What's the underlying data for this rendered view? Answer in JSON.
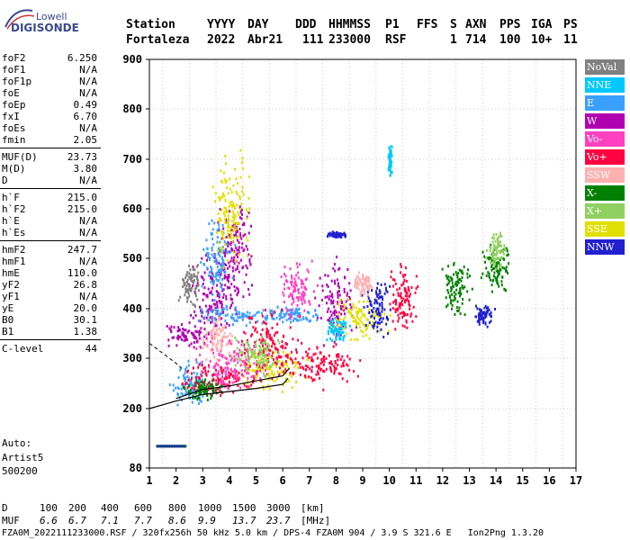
{
  "logo": {
    "brand_top": "Lowell",
    "brand_main": "DIGISONDE"
  },
  "header": {
    "labels": [
      "Station",
      "YYYY",
      "DAY",
      "DDD",
      "HHMMSS",
      "P1",
      "FFS",
      "S",
      "AXN",
      "PPS",
      "IGA",
      "PS"
    ],
    "values": [
      "Fortaleza",
      "2022",
      "Abr21",
      "111",
      "233000",
      "RSF",
      "",
      "1",
      "714",
      "100",
      "10+",
      "11"
    ]
  },
  "params": [
    {
      "group": [
        {
          "name": "foF2",
          "value": "6.250"
        },
        {
          "name": "foF1",
          "value": "N/A"
        },
        {
          "name": "foF1p",
          "value": "N/A"
        },
        {
          "name": "foE",
          "value": "N/A"
        },
        {
          "name": "foEp",
          "value": "0.49"
        },
        {
          "name": "fxI",
          "value": "6.70"
        },
        {
          "name": "foEs",
          "value": "N/A"
        },
        {
          "name": "fmin",
          "value": "2.05"
        }
      ]
    },
    {
      "group": [
        {
          "name": "MUF(D)",
          "value": "23.73"
        },
        {
          "name": "M(D)",
          "value": "3.80"
        },
        {
          "name": "D",
          "value": "N/A"
        }
      ]
    },
    {
      "group": [
        {
          "name": "h`F",
          "value": "215.0"
        },
        {
          "name": "h`F2",
          "value": "215.0"
        },
        {
          "name": "h`E",
          "value": "N/A"
        },
        {
          "name": "h`Es",
          "value": "N/A"
        }
      ]
    },
    {
      "group": [
        {
          "name": "hmF2",
          "value": "247.7"
        },
        {
          "name": "hmF1",
          "value": "N/A"
        },
        {
          "name": "hmE",
          "value": "110.0"
        },
        {
          "name": "yF2",
          "value": "26.8"
        },
        {
          "name": "yF1",
          "value": "N/A"
        },
        {
          "name": "yE",
          "value": "20.0"
        },
        {
          "name": "B0",
          "value": "30.1"
        },
        {
          "name": "B1",
          "value": "1.38"
        }
      ]
    },
    {
      "group": [
        {
          "name": "C-level",
          "value": "44"
        }
      ]
    }
  ],
  "auto": {
    "line1": "Auto:",
    "line2": "Artist5",
    "line3": "500200"
  },
  "legend": [
    {
      "label": "NoVal",
      "color": "#808080"
    },
    {
      "label": "NNE",
      "color": "#00c8ff"
    },
    {
      "label": "E",
      "color": "#3aa0ff"
    },
    {
      "label": "W",
      "color": "#b000b0"
    },
    {
      "label": "Vo-",
      "color": "#ff40c0"
    },
    {
      "label": "Vo+",
      "color": "#ff0040"
    },
    {
      "label": "SSW",
      "color": "#ffb0b0"
    },
    {
      "label": "X-",
      "color": "#008000"
    },
    {
      "label": "X+",
      "color": "#90d060"
    },
    {
      "label": "SSE",
      "color": "#e0e000"
    },
    {
      "label": "NNW",
      "color": "#2020d0"
    }
  ],
  "chart_data": {
    "type": "scatter",
    "xlim": [
      1,
      17
    ],
    "ylim": [
      80,
      900
    ],
    "x_ticks": [
      "1",
      "2",
      "3",
      "4",
      "5",
      "6",
      "7",
      "8",
      "9",
      "10",
      "11",
      "12",
      "13",
      "14",
      "15",
      "16",
      "17"
    ],
    "y_ticks": [
      "80",
      "200",
      "300",
      "400",
      "500",
      "600",
      "700",
      "800",
      "900"
    ],
    "y_tick_values": [
      80,
      200,
      300,
      400,
      500,
      600,
      700,
      800,
      900
    ],
    "grid": true,
    "legend_position": "right",
    "series": [
      {
        "name": "W",
        "color": "#b000b0",
        "clusters": [
          [
            3.5,
            430,
            0.7,
            60
          ],
          [
            2.5,
            350,
            0.6,
            20
          ],
          [
            4.2,
            520,
            0.5,
            80
          ],
          [
            8.0,
            410,
            0.5,
            60
          ]
        ]
      },
      {
        "name": "E",
        "color": "#3aa0ff",
        "clusters": [
          [
            3.5,
            500,
            0.4,
            60
          ],
          [
            4.5,
            390,
            1.2,
            15
          ],
          [
            2.5,
            250,
            0.6,
            30
          ],
          [
            6.5,
            390,
            0.7,
            12
          ]
        ]
      },
      {
        "name": "SSE",
        "color": "#e0e000",
        "clusters": [
          [
            4.0,
            600,
            0.5,
            80
          ],
          [
            8.8,
            380,
            0.8,
            30
          ],
          [
            5.5,
            280,
            1.0,
            30
          ]
        ]
      },
      {
        "name": "Vo+",
        "color": "#ff0040",
        "clusters": [
          [
            3.5,
            260,
            1.2,
            25
          ],
          [
            5.5,
            330,
            0.8,
            50
          ],
          [
            7.5,
            290,
            1.0,
            30
          ],
          [
            10.5,
            420,
            0.4,
            50
          ]
        ]
      },
      {
        "name": "Vo-",
        "color": "#ff40c0",
        "clusters": [
          [
            4.0,
            290,
            1.0,
            40
          ],
          [
            6.5,
            440,
            0.5,
            40
          ]
        ]
      },
      {
        "name": "X-",
        "color": "#008000",
        "clusters": [
          [
            3.0,
            240,
            0.6,
            15
          ],
          [
            12.5,
            450,
            0.4,
            40
          ],
          [
            14.0,
            480,
            0.4,
            40
          ]
        ]
      },
      {
        "name": "X+",
        "color": "#90d060",
        "clusters": [
          [
            5.0,
            310,
            0.6,
            30
          ],
          [
            14.0,
            520,
            0.3,
            25
          ]
        ]
      },
      {
        "name": "NNE",
        "color": "#00c8ff",
        "clusters": [
          [
            10.0,
            700,
            0.05,
            20
          ],
          [
            8.0,
            360,
            0.3,
            20
          ]
        ]
      },
      {
        "name": "NNW",
        "color": "#2020d0",
        "clusters": [
          [
            8.0,
            550,
            0.3,
            5
          ],
          [
            9.5,
            400,
            0.4,
            40
          ],
          [
            13.5,
            390,
            0.3,
            15
          ]
        ]
      },
      {
        "name": "SSW",
        "color": "#ffb0b0",
        "clusters": [
          [
            3.5,
            340,
            0.4,
            30
          ],
          [
            9.0,
            450,
            0.3,
            20
          ]
        ]
      },
      {
        "name": "NoVal",
        "color": "#808080",
        "clusters": [
          [
            2.5,
            450,
            0.3,
            30
          ]
        ]
      }
    ],
    "dashed_curve": [
      [
        1.0,
        330
      ],
      [
        1.5,
        310
      ],
      [
        2.0,
        290
      ],
      [
        2.2,
        280
      ]
    ],
    "profile_curve_lower": [
      [
        1.0,
        200
      ],
      [
        2.0,
        215
      ],
      [
        3.0,
        228
      ],
      [
        4.0,
        234
      ],
      [
        5.0,
        240
      ],
      [
        6.0,
        248
      ],
      [
        6.2,
        260
      ]
    ],
    "profile_curve_upper": [
      [
        2.0,
        220
      ],
      [
        3.0,
        238
      ],
      [
        4.0,
        245
      ],
      [
        5.0,
        255
      ],
      [
        6.0,
        265
      ],
      [
        6.25,
        280
      ]
    ],
    "es_trace": {
      "x0": 1.25,
      "x1": 2.35,
      "y": 125
    }
  },
  "footer": {
    "d_label": "D",
    "d_values": [
      "100",
      "200",
      "400",
      "600",
      "800",
      "1000",
      "1500",
      "3000"
    ],
    "d_unit": "[km]",
    "muf_label": "MUF",
    "muf_values": [
      "6.6",
      "6.7",
      "7.1",
      "7.7",
      "8.6",
      "9.9",
      "13.7",
      "23.7"
    ],
    "muf_unit": "[MHz]",
    "status": "FZA0M_2022111233000.RSF / 320fx256h 50 kHz 5.0 km / DPS-4 FZA0M 904 / 3.9 S 321.6 E   Ion2Png 1.3.20"
  }
}
